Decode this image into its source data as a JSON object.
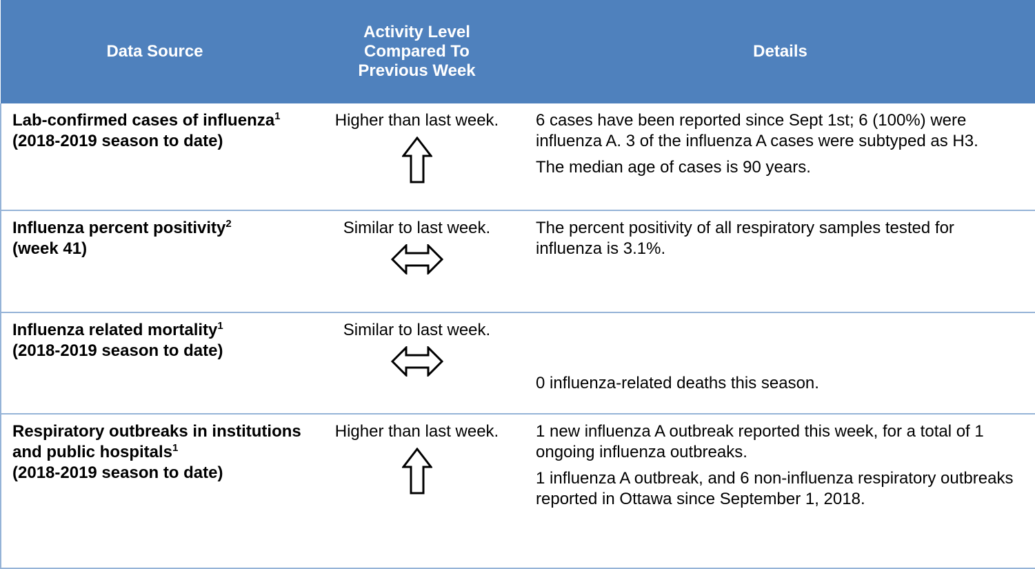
{
  "header": {
    "columns": [
      "Data Source",
      "Activity Level Compared To Previous Week",
      "Details"
    ]
  },
  "rows": [
    {
      "source": "Lab-confirmed cases of influenza",
      "note": "1",
      "period": "(2018-2019  season to date)",
      "activity": "Higher than last week.",
      "details": [
        "6 cases have been reported since Sept 1st; 6 (100%) were influenza A. 3 of the influenza A cases were subtyped as H3.",
        "The median age of cases is 90 years."
      ]
    },
    {
      "source": "Influenza percent positivity",
      "note": "2",
      "period": "(week 41)",
      "activity": "Similar to last week.",
      "details": [
        "The percent positivity of all respiratory samples tested for influenza is 3.1%."
      ]
    },
    {
      "source": "Influenza related mortality",
      "note": "1",
      "period": "(2018-2019  season to date)",
      "activity": "Similar to last week.",
      "details": [
        "0 influenza-related deaths this season."
      ]
    },
    {
      "source": "Respiratory outbreaks in institutions and public hospitals",
      "note": "1",
      "period": "(2018-2019  season to date)",
      "activity": "Higher than last week.",
      "details": [
        "1 new influenza A outbreak reported this week, for a total of 1 ongoing influenza outbreaks.",
        "1 influenza A outbreak, and 6 non-influenza respiratory outbreaks reported in Ottawa since September 1, 2018."
      ]
    }
  ]
}
